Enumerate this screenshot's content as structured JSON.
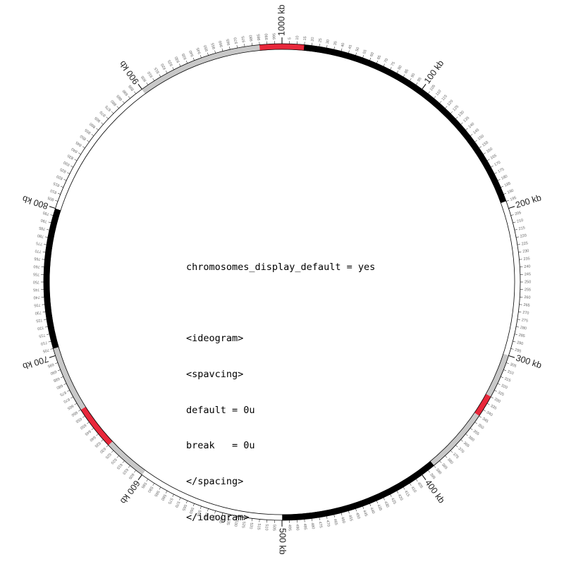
{
  "ideogram": {
    "scale_max_kb": 1000,
    "major_tick_every_kb": 100,
    "minor_label_every_kb": 5,
    "major_label_suffix": " kb",
    "bands": [
      {
        "start": 0,
        "end": 15,
        "color": "#e8283b",
        "label": "red"
      },
      {
        "start": 15,
        "end": 195,
        "color": "#000000",
        "label": "black"
      },
      {
        "start": 195,
        "end": 300,
        "color": "#ffffff",
        "label": "white"
      },
      {
        "start": 300,
        "end": 330,
        "color": "#c8c8c8",
        "label": "gray"
      },
      {
        "start": 330,
        "end": 345,
        "color": "#e8283b",
        "label": "red"
      },
      {
        "start": 345,
        "end": 390,
        "color": "#c8c8c8",
        "label": "gray"
      },
      {
        "start": 390,
        "end": 500,
        "color": "#000000",
        "label": "black"
      },
      {
        "start": 500,
        "end": 600,
        "color": "#ffffff",
        "label": "white"
      },
      {
        "start": 600,
        "end": 630,
        "color": "#c8c8c8",
        "label": "gray"
      },
      {
        "start": 630,
        "end": 660,
        "color": "#e8283b",
        "label": "red"
      },
      {
        "start": 660,
        "end": 705,
        "color": "#c8c8c8",
        "label": "gray"
      },
      {
        "start": 705,
        "end": 800,
        "color": "#000000",
        "label": "black"
      },
      {
        "start": 800,
        "end": 900,
        "color": "#ffffff",
        "label": "white"
      },
      {
        "start": 900,
        "end": 985,
        "color": "#c8c8c8",
        "label": "gray"
      },
      {
        "start": 985,
        "end": 1000,
        "color": "#e8283b",
        "label": "red"
      }
    ]
  },
  "config_lines": [
    "chromosomes_display_default = yes",
    "",
    "<ideogram>",
    "<spavcing>",
    "default = 0u",
    "break   = 0u",
    "</spacing>",
    "</ideogram>"
  ]
}
